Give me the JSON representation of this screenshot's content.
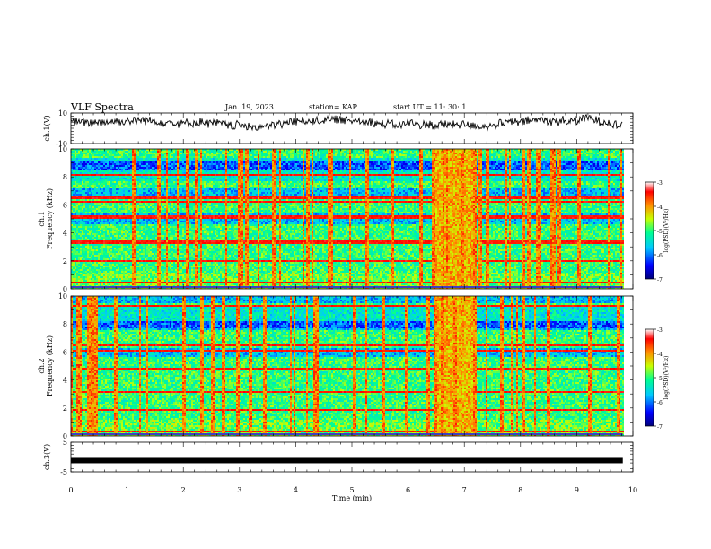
{
  "header": {
    "title": "VLF Spectra",
    "date": "Jan. 19, 2023",
    "station": "station= KAP",
    "start": "start  UT =   11: 30: 1"
  },
  "chart_data": [
    {
      "type": "line",
      "name": "ch1-waveform",
      "ylabel": "ch.1(V)",
      "ylim": [
        -10,
        10
      ],
      "yticks": [
        "10",
        "-10"
      ],
      "xlim": [
        0,
        10
      ],
      "trace_x_end": 9.82,
      "baseline": 3.5,
      "amplitude": 2.5
    },
    {
      "type": "heatmap",
      "name": "ch1-spectrogram",
      "ylabel": "ch.1\nFrequency (kHz)",
      "ylim": [
        0,
        10
      ],
      "yticks": [
        "0",
        "2",
        "4",
        "6",
        "8",
        "10"
      ],
      "xlim": [
        0,
        10
      ],
      "data_x_end": 9.82,
      "burst_x": [
        6.48,
        7.15
      ],
      "strong_lines_khz": [
        0.5,
        2.1,
        3.4,
        5.2,
        6.3,
        6.6,
        8.2
      ],
      "colorbar": {
        "label": "log(PSD)(V²/Hz)",
        "range": [
          -7,
          -3
        ],
        "ticks": [
          "-3",
          "-4",
          "-5",
          "-6",
          "-7"
        ],
        "colors": [
          "#00007a",
          "#0000ff",
          "#00c8ff",
          "#00ff90",
          "#c8ff00",
          "#ff9000",
          "#ff0000",
          "#ffffff"
        ]
      }
    },
    {
      "type": "heatmap",
      "name": "ch2-spectrogram",
      "ylabel": "ch.2\nFrequency (kHz)",
      "ylim": [
        0,
        10
      ],
      "yticks": [
        "0",
        "2",
        "4",
        "6",
        "8",
        "10"
      ],
      "xlim": [
        0,
        10
      ],
      "data_x_end": 9.82,
      "burst_x": [
        6.48,
        7.15
      ],
      "strong_lines_khz": [
        0.4,
        1.9,
        3.2,
        4.9,
        6.2,
        6.5,
        9.4
      ],
      "colorbar": {
        "label": "log(PSD)(V²/Hz)",
        "range": [
          -7,
          -3
        ],
        "ticks": [
          "-3",
          "-4",
          "-5",
          "-6",
          "-7"
        ],
        "colors": [
          "#00007a",
          "#0000ff",
          "#00c8ff",
          "#00ff90",
          "#c8ff00",
          "#ff9000",
          "#ff0000",
          "#ffffff"
        ]
      }
    },
    {
      "type": "line",
      "name": "ch3-waveform",
      "ylabel": "ch.3(V)",
      "ylim": [
        -5,
        5
      ],
      "yticks": [
        "5",
        "-5"
      ],
      "xlim": [
        0,
        10
      ],
      "trace_x_end": 9.82,
      "level": -1.2
    }
  ],
  "xaxis": {
    "label": "Time (min)",
    "ticks": [
      "0",
      "1",
      "2",
      "3",
      "4",
      "5",
      "6",
      "7",
      "8",
      "9",
      "10"
    ]
  }
}
